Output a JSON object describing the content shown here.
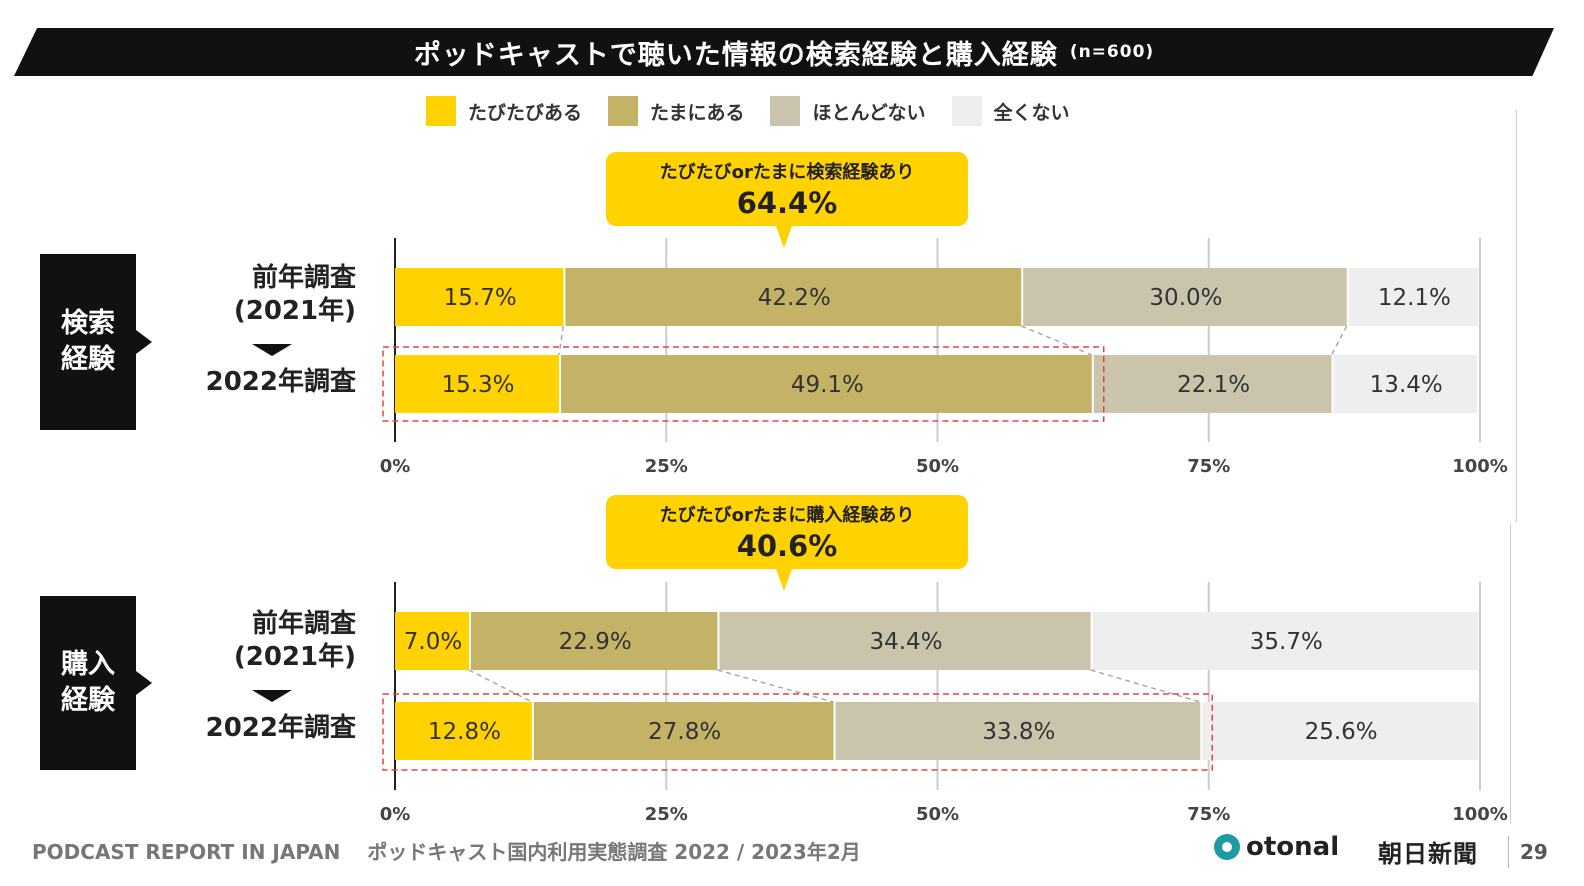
{
  "header": {
    "title": "ポッドキャストで聴いた情報の検索経験と購入経験",
    "n_label": "(n=600)"
  },
  "legend": [
    {
      "label": "たびたびある",
      "color": "#ffd200"
    },
    {
      "label": "たまにある",
      "color": "#c4b267"
    },
    {
      "label": "ほとんどない",
      "color": "#c9c4ab"
    },
    {
      "label": "全くない",
      "color": "#eeeeee"
    }
  ],
  "sections": [
    {
      "side_label_1": "検索",
      "side_label_2": "経験",
      "row1_label_1": "前年調査",
      "row1_label_2": "(2021年)",
      "row2_label": "2022年調査",
      "callout_text": "たびたびorたまに検索経験あり",
      "callout_value": "64.4%"
    },
    {
      "side_label_1": "購入",
      "side_label_2": "経験",
      "row1_label_1": "前年調査",
      "row1_label_2": "(2021年)",
      "row2_label": "2022年調査",
      "callout_text": "たびたびorたまに購入経験あり",
      "callout_value": "40.6%"
    }
  ],
  "chart_data": [
    {
      "type": "bar",
      "orientation": "horizontal-stacked-100",
      "title": "検索経験",
      "categories": [
        "前年調査(2021年)",
        "2022年調査"
      ],
      "series": [
        {
          "name": "たびたびある",
          "values": [
            15.7,
            15.3
          ],
          "labels": [
            "15.7%",
            "15.3%"
          ]
        },
        {
          "name": "たまにある",
          "values": [
            42.2,
            49.1
          ],
          "labels": [
            "42.2%",
            "49.1%"
          ]
        },
        {
          "name": "ほとんどない",
          "values": [
            30.0,
            22.1
          ],
          "labels": [
            "30.0%",
            "22.1%"
          ]
        },
        {
          "name": "全くない",
          "values": [
            12.1,
            13.4
          ],
          "labels": [
            "12.1%",
            "13.4%"
          ]
        }
      ],
      "xlim": [
        0,
        100
      ],
      "xticks": [
        "0%",
        "25%",
        "50%",
        "75%",
        "100%"
      ]
    },
    {
      "type": "bar",
      "orientation": "horizontal-stacked-100",
      "title": "購入経験",
      "categories": [
        "前年調査(2021年)",
        "2022年調査"
      ],
      "series": [
        {
          "name": "たびたびある",
          "values": [
            7.0,
            12.8
          ],
          "labels": [
            "7.0%",
            "12.8%"
          ]
        },
        {
          "name": "たまにある",
          "values": [
            22.9,
            27.8
          ],
          "labels": [
            "22.9%",
            "27.8%"
          ]
        },
        {
          "name": "ほとんどない",
          "values": [
            34.4,
            33.8
          ],
          "labels": [
            "34.4%",
            "33.8%"
          ]
        },
        {
          "name": "全くない",
          "values": [
            35.7,
            25.6
          ],
          "labels": [
            "35.7%",
            "25.6%"
          ]
        }
      ],
      "xlim": [
        0,
        100
      ],
      "xticks": [
        "0%",
        "25%",
        "50%",
        "75%",
        "100%"
      ]
    }
  ],
  "footer": {
    "report": "PODCAST REPORT IN JAPAN",
    "subtitle": "ポッドキャスト国内利用実態調査 2022 / 2023年2月",
    "logo1": "otonal",
    "logo2": "朝日新聞",
    "page": "29"
  }
}
